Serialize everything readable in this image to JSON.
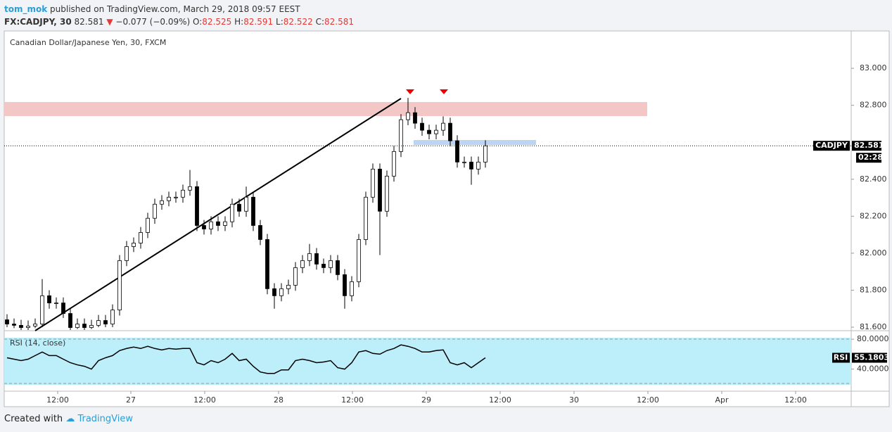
{
  "header": {
    "author": "tom_mok",
    "published": "published on TradingView.com, March 29, 2018 09:57 EEST",
    "symbol": "FX:CADJPY, 30",
    "last": "82.581",
    "arrow": "▼",
    "change": "−0.077 (−0.09%)",
    "o_label": "O:",
    "o": "82.525",
    "h_label": "H:",
    "h": "82.591",
    "l_label": "L:",
    "l": "82.522",
    "c_label": "C:",
    "c": "82.581"
  },
  "footer": {
    "created": "Created with",
    "brand": "TradingView"
  },
  "chart_data": [
    {
      "type": "candlestick",
      "title": "Canadian Dollar/Japanese Yen, 30, FXCM",
      "open": [
        81.64,
        81.617,
        81.61,
        81.598,
        81.606,
        81.617,
        81.77,
        81.731,
        81.731,
        81.674,
        81.598,
        81.617,
        81.598,
        81.61,
        81.636,
        81.617,
        81.693,
        81.96,
        82.036,
        82.055,
        82.112,
        82.189,
        82.265,
        82.284,
        82.303,
        82.303,
        82.341,
        82.36,
        82.15,
        82.131,
        82.17,
        82.15,
        82.17,
        82.265,
        82.227,
        82.303,
        82.15,
        82.074,
        81.808,
        81.77,
        81.808,
        81.827,
        81.922,
        81.96,
        81.998,
        81.941,
        81.922,
        81.96,
        81.884,
        81.77,
        81.846,
        82.074,
        82.303,
        82.455,
        82.227,
        82.417,
        82.55,
        82.722,
        82.76,
        82.703,
        82.665,
        82.646,
        82.665,
        82.703,
        82.608,
        82.493,
        82.493,
        82.455,
        82.493
      ],
      "high": [
        81.67,
        81.647,
        81.64,
        81.636,
        81.647,
        81.86,
        81.8,
        81.761,
        81.761,
        81.704,
        81.647,
        81.647,
        81.64,
        81.666,
        81.666,
        81.723,
        81.99,
        82.066,
        82.085,
        82.142,
        82.219,
        82.295,
        82.314,
        82.333,
        82.333,
        82.371,
        82.45,
        82.39,
        82.18,
        82.2,
        82.2,
        82.2,
        82.295,
        82.295,
        82.36,
        82.333,
        82.18,
        82.104,
        81.838,
        81.838,
        81.857,
        81.952,
        81.99,
        82.05,
        82.028,
        81.971,
        81.99,
        81.99,
        81.914,
        81.876,
        82.104,
        82.333,
        82.485,
        82.485,
        82.447,
        82.58,
        82.752,
        82.84,
        82.79,
        82.733,
        82.695,
        82.695,
        82.74,
        82.733,
        82.638,
        82.523,
        82.523,
        82.523,
        82.611
      ],
      "low": [
        81.6,
        81.595,
        81.585,
        81.585,
        81.595,
        81.6,
        81.7,
        81.7,
        81.65,
        81.585,
        81.59,
        81.585,
        81.59,
        81.6,
        81.6,
        81.6,
        81.663,
        81.93,
        82.006,
        82.025,
        82.082,
        82.159,
        82.235,
        82.254,
        82.273,
        82.273,
        82.311,
        82.12,
        82.101,
        82.101,
        82.12,
        82.12,
        82.14,
        82.197,
        82.197,
        82.12,
        82.044,
        81.778,
        81.7,
        81.74,
        81.778,
        81.797,
        81.892,
        81.93,
        81.911,
        81.892,
        81.892,
        81.854,
        81.7,
        81.74,
        81.816,
        82.044,
        82.273,
        81.99,
        82.197,
        82.387,
        82.52,
        82.692,
        82.673,
        82.635,
        82.616,
        82.616,
        82.635,
        82.578,
        82.463,
        82.463,
        82.37,
        82.425,
        82.463
      ],
      "close": [
        81.617,
        81.61,
        81.598,
        81.606,
        81.617,
        81.77,
        81.731,
        81.731,
        81.674,
        81.598,
        81.617,
        81.598,
        81.61,
        81.636,
        81.617,
        81.693,
        81.96,
        82.036,
        82.055,
        82.112,
        82.189,
        82.265,
        82.284,
        82.303,
        82.303,
        82.341,
        82.36,
        82.15,
        82.131,
        82.17,
        82.15,
        82.17,
        82.265,
        82.227,
        82.303,
        82.15,
        82.074,
        81.808,
        81.77,
        81.808,
        81.827,
        81.922,
        81.96,
        81.998,
        81.941,
        81.922,
        81.96,
        81.884,
        81.77,
        81.846,
        82.074,
        82.303,
        82.455,
        82.227,
        82.417,
        82.55,
        82.722,
        82.76,
        82.703,
        82.665,
        82.646,
        82.665,
        82.703,
        82.608,
        82.493,
        82.493,
        82.455,
        82.493,
        82.581
      ],
      "ylim": [
        81.581,
        83.202
      ],
      "yticks": [
        {
          "value": 83.0,
          "label": "83.000"
        },
        {
          "value": 82.8,
          "label": "82.800"
        },
        {
          "value": 82.4,
          "label": "82.400"
        },
        {
          "value": 82.2,
          "label": "82.200"
        },
        {
          "value": 82.0,
          "label": "82.000"
        },
        {
          "value": 81.8,
          "label": "81.800"
        },
        {
          "value": 81.6,
          "label": "81.600"
        }
      ],
      "xlim": [
        -0.4,
        120
      ],
      "xticks": [
        {
          "value": 7.2,
          "label": "12:00"
        },
        {
          "value": 17.6,
          "label": "27"
        },
        {
          "value": 28.1,
          "label": "12:00"
        },
        {
          "value": 38.6,
          "label": "28"
        },
        {
          "value": 49.1,
          "label": "12:00"
        },
        {
          "value": 59.6,
          "label": "29"
        },
        {
          "value": 70.1,
          "label": "12:00"
        },
        {
          "value": 80.6,
          "label": "30"
        },
        {
          "value": 91.1,
          "label": "12:00"
        },
        {
          "value": 101.6,
          "label": "Apr"
        },
        {
          "value": 112.1,
          "label": "12:00"
        }
      ],
      "last_price": {
        "symbol": "CADJPY",
        "value": 82.581,
        "countdown": "02:28"
      }
    },
    {
      "type": "line",
      "title": "RSI (14, close)",
      "name": "RSI",
      "color": "#000000",
      "values": [
        55.2,
        53.3,
        51.4,
        53.3,
        58.1,
        62.9,
        58.1,
        58.1,
        53.3,
        48.6,
        45.7,
        43.8,
        40.0,
        51.4,
        55.2,
        58.1,
        64.8,
        67.6,
        69.5,
        67.6,
        70.5,
        67.6,
        65.7,
        67.6,
        66.7,
        67.6,
        67.6,
        48.6,
        45.7,
        51.4,
        48.6,
        53.3,
        61.0,
        51.4,
        53.3,
        43.8,
        36.2,
        34.3,
        34.3,
        39.0,
        39.0,
        51.4,
        53.3,
        51.4,
        48.6,
        49.5,
        51.4,
        41.9,
        40.0,
        48.6,
        62.9,
        64.8,
        61.0,
        60.0,
        64.8,
        67.6,
        72.4,
        70.5,
        67.6,
        62.9,
        62.9,
        64.8,
        65.7,
        48.6,
        45.7,
        48.6,
        41.9,
        48.6,
        55.1803
      ],
      "value_labels_last": "55.1803",
      "ylim": [
        10.5,
        89.5
      ],
      "yticks": [
        {
          "value": 80,
          "label": "80.0000"
        },
        {
          "value": 40,
          "label": "40.0000"
        }
      ]
    }
  ]
}
